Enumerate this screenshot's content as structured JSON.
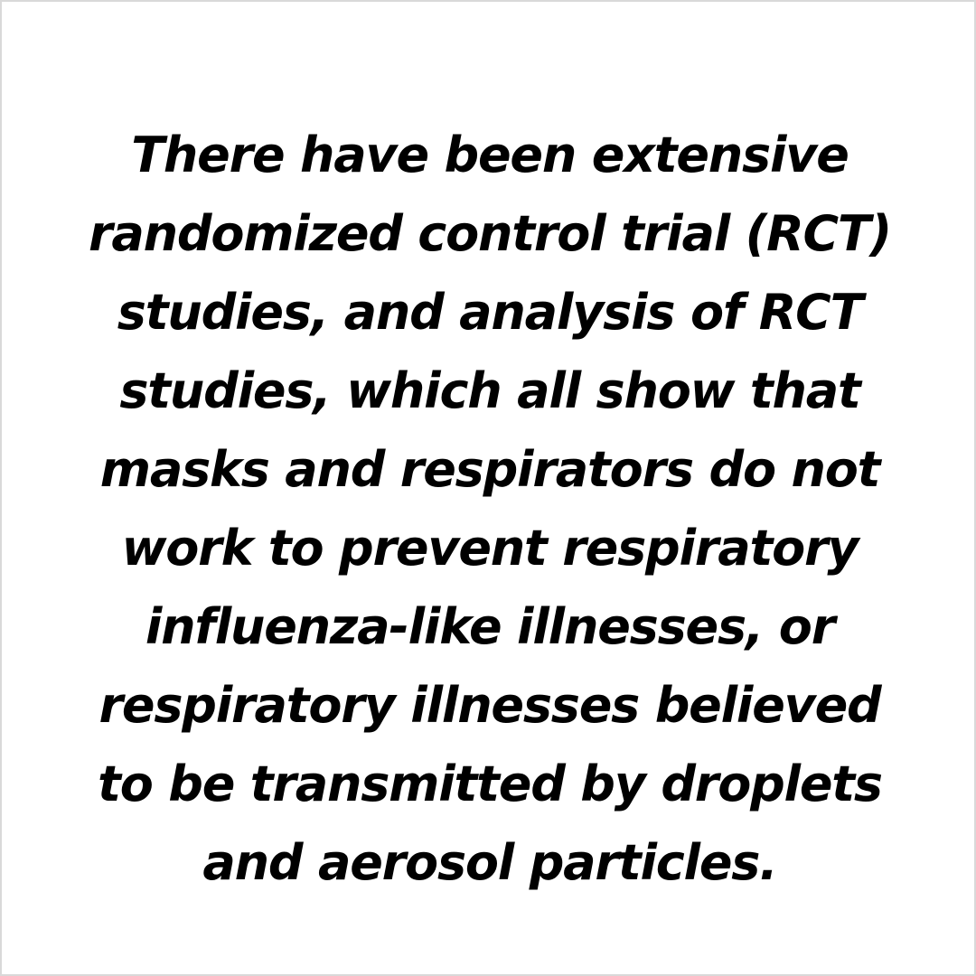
{
  "quote": {
    "lines": [
      "There have been extensive",
      "randomized control trial (RCT)",
      "studies, and analysis of RCT",
      "studies, which all show that",
      "masks and respirators do not",
      "work to prevent respiratory",
      "influenza-like illnesses, or",
      "respiratory illnesses believed",
      "to be transmitted by droplets",
      "and aerosol particles."
    ]
  },
  "colors": {
    "background": "#ffffff",
    "text": "#000000"
  }
}
